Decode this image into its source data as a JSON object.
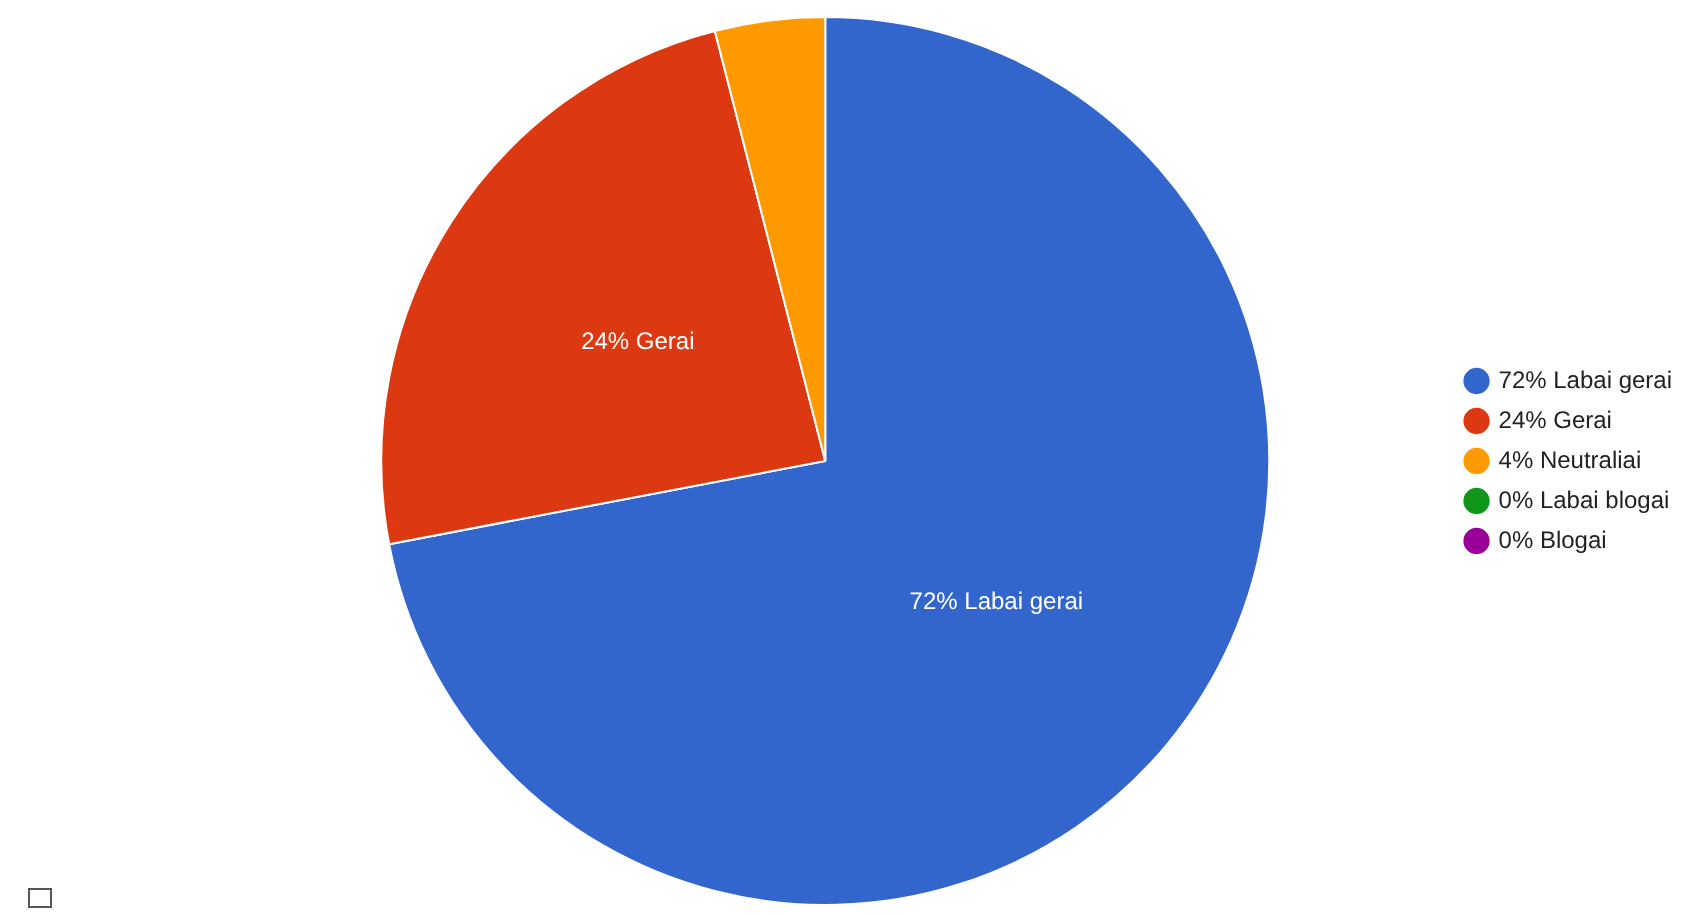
{
  "chart_data": {
    "type": "pie",
    "categories": [
      "72% Labai gerai",
      "24% Gerai",
      "4% Neutraliai",
      "0% Labai blogai",
      "0% Blogai"
    ],
    "values": [
      72,
      24,
      4,
      0,
      0
    ],
    "colors": [
      "#3366cc",
      "#dc3912",
      "#ff9900",
      "#109618",
      "#990099"
    ],
    "value_labels": [
      "72% Labai gerai",
      "24% Gerai",
      null,
      null,
      null
    ],
    "legend": "right"
  }
}
